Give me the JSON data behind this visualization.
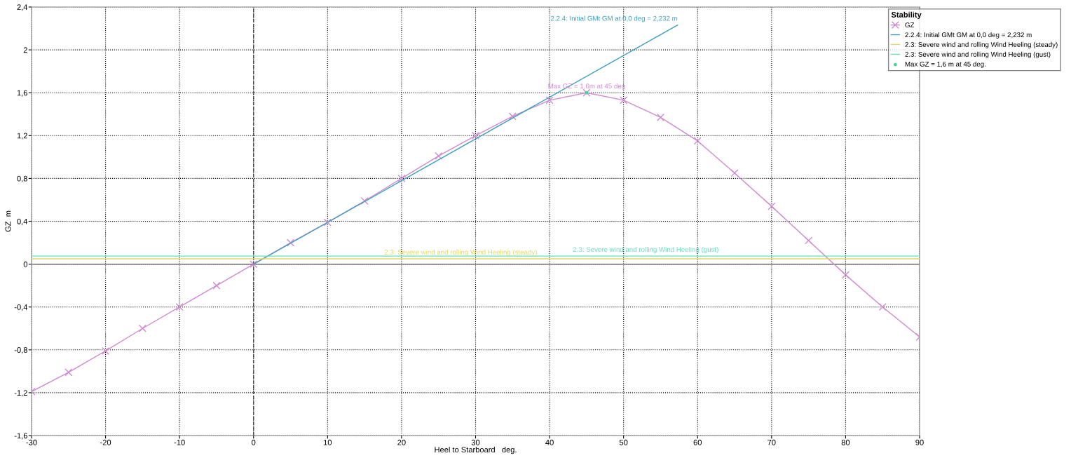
{
  "chart_data": {
    "type": "line",
    "xlabel": "Heel to Starboard   deg.",
    "ylabel": "GZ  m",
    "legend_title": "Stability",
    "legend": "top right",
    "grid": true,
    "line_style": "solid",
    "xlim": [
      -30,
      90
    ],
    "xticks": [
      -30,
      -20,
      -10,
      0,
      10,
      20,
      30,
      40,
      50,
      60,
      70,
      80,
      90
    ],
    "ylim": [
      -1.6,
      2.4
    ],
    "yticks": [
      {
        "value": -1.6,
        "label": "-1,6"
      },
      {
        "value": -1.2,
        "label": "-1,2"
      },
      {
        "value": -0.8,
        "label": "-0,8"
      },
      {
        "value": -0.4,
        "label": "-0,4"
      },
      0,
      {
        "value": 0.4,
        "label": "0,4"
      },
      {
        "value": 0.8,
        "label": "0,8"
      },
      {
        "value": 1.2,
        "label": "1,2"
      },
      {
        "value": 1.6,
        "label": "1,6"
      },
      2,
      {
        "value": 2.4,
        "label": "2,4"
      }
    ],
    "series": [
      {
        "name": "GZ",
        "color": "#d08ad0",
        "marker": "cross",
        "x": [
          -30,
          -25,
          -20,
          -15,
          -10,
          -5,
          0,
          5,
          10,
          15,
          20,
          25,
          30,
          35,
          40,
          45,
          50,
          55,
          60,
          65,
          70,
          75,
          80,
          85,
          90
        ],
        "values": [
          -1.19,
          -1.01,
          -0.81,
          -0.6,
          -0.4,
          -0.2,
          0,
          0.2,
          0.39,
          0.59,
          0.8,
          1.01,
          1.2,
          1.38,
          1.53,
          1.6,
          1.53,
          1.37,
          1.15,
          0.85,
          0.54,
          0.22,
          -0.1,
          -0.4,
          -0.68
        ]
      },
      {
        "name": "2.2.4: Initial GMt GM at 0,0 deg = 2,232 m",
        "color": "#3aa0c0",
        "x": [
          0,
          57.3
        ],
        "values": [
          0,
          2.232
        ]
      },
      {
        "name": "2.3: Severe wind and rolling Wind Heeling (steady)",
        "color": "#e0d860",
        "x": [
          -30,
          90
        ],
        "values": [
          0.05,
          0.05
        ]
      },
      {
        "name": "2.3: Severe wind and rolling Wind Heeling (gust)",
        "color": "#60e0c0",
        "x": [
          -30,
          90
        ],
        "values": [
          0.075,
          0.075
        ]
      },
      {
        "name": "Max GZ = 1,6 m at 45 deg.",
        "type": "scatter",
        "color": "#40d890",
        "marker": "circle",
        "x": [
          45
        ],
        "values": [
          1.6
        ]
      }
    ],
    "annotations": [
      {
        "text": "2.2.4: Initial GMt GM at 0,0 deg = 2,232 m",
        "x": 57.3,
        "y": 2.232
      },
      {
        "text": "Max GZ = 1,6m at 45 deg",
        "x": 45,
        "y": 1.6
      },
      {
        "text": "2.3: Severe wind and rolling Wind Heeling (steady)",
        "x": 28,
        "y": 0.05
      },
      {
        "text": "2.3: Severe wind and rolling Wind Heeling (gust)",
        "x": 53,
        "y": 0.075
      }
    ],
    "ref_lines": [
      {
        "axis": "x",
        "value": 0,
        "color": "#444444",
        "line_style": "dashed"
      },
      {
        "axis": "y",
        "value": 0,
        "color": "#555555",
        "line_style": "solid"
      }
    ]
  }
}
